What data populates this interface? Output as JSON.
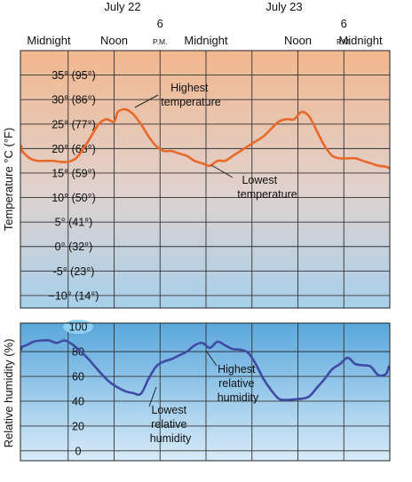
{
  "chart_data": [
    {
      "type": "line",
      "dates": [
        "July 22",
        "July 23"
      ],
      "time_labels": [
        {
          "label": "Midnight",
          "hour": 0
        },
        {
          "label": "Noon",
          "hour": 12
        },
        {
          "label": "6",
          "sub": "P.M.",
          "hour": 18
        },
        {
          "label": "Midnight",
          "hour": 24
        },
        {
          "label": "Noon",
          "hour": 36
        },
        {
          "label": "6",
          "sub": "P.M.",
          "hour": 42
        },
        {
          "label": "Midnight",
          "hour": 48
        }
      ],
      "xlim": [
        0,
        48
      ],
      "ylabel": "Temperature °C (°F)",
      "ylim": [
        -14,
        40
      ],
      "y_ticks": [
        {
          "value": 35,
          "label": "35° (95°)"
        },
        {
          "value": 30,
          "label": "30° (86°)"
        },
        {
          "value": 25,
          "label": "25° (77°)"
        },
        {
          "value": 20,
          "label": "20° (68°)"
        },
        {
          "value": 15,
          "label": "15° (59°)"
        },
        {
          "value": 10,
          "label": "10° (50°)"
        },
        {
          "value": 5,
          "label": "5° (41°)"
        },
        {
          "value": 0,
          "label": "0° (32°)"
        },
        {
          "value": -5,
          "label": "-5° (23°)"
        },
        {
          "value": -10,
          "label": "−10° (14°)"
        }
      ],
      "series": [
        {
          "color": "#e8692a",
          "points": [
            [
              -1.5,
              19.5
            ],
            [
              -1,
              20.5
            ],
            [
              0,
              19.5
            ],
            [
              1,
              18
            ],
            [
              2,
              17.5
            ],
            [
              3,
              17.5
            ],
            [
              4,
              17.5
            ],
            [
              5,
              17.3
            ],
            [
              6,
              17.3
            ],
            [
              7,
              18
            ],
            [
              8,
              20
            ],
            [
              9,
              22.5
            ],
            [
              10,
              25
            ],
            [
              11,
              26
            ],
            [
              12,
              25.5
            ],
            [
              12.5,
              27.5
            ],
            [
              13.5,
              28
            ],
            [
              14.5,
              27
            ],
            [
              15.5,
              25
            ],
            [
              16.5,
              22.5
            ],
            [
              17.5,
              20.5
            ],
            [
              18.5,
              19.5
            ],
            [
              19.5,
              19.5
            ],
            [
              20.5,
              19
            ],
            [
              21.5,
              18.5
            ],
            [
              22.5,
              17.5
            ],
            [
              23.5,
              17
            ],
            [
              24.5,
              16.5
            ],
            [
              25.5,
              17.5
            ],
            [
              26.5,
              17.5
            ],
            [
              27.5,
              18.5
            ],
            [
              28.5,
              19.5
            ],
            [
              29.5,
              20.5
            ],
            [
              30.5,
              21.5
            ],
            [
              31.5,
              22.5
            ],
            [
              32.5,
              24
            ],
            [
              33.5,
              25.5
            ],
            [
              34.5,
              26
            ],
            [
              35.5,
              26
            ],
            [
              36.5,
              27.5
            ],
            [
              37.5,
              26.5
            ],
            [
              38.5,
              23.5
            ],
            [
              39.5,
              20.5
            ],
            [
              40.5,
              18.5
            ],
            [
              41.5,
              18
            ],
            [
              42.5,
              18
            ],
            [
              43.5,
              18
            ],
            [
              44.5,
              17.5
            ],
            [
              45.5,
              17
            ],
            [
              46.5,
              16.5
            ],
            [
              47.5,
              16.3
            ],
            [
              48.5,
              16
            ]
          ]
        }
      ],
      "annotations": [
        {
          "lines": [
            "Highest",
            "temperature"
          ]
        },
        {
          "lines": [
            "Lowest",
            "temperature"
          ]
        }
      ],
      "background": {
        "top": "#f2b78e",
        "bottom": "#a7d0ea"
      },
      "grid": true
    },
    {
      "type": "line",
      "ylabel": "Relative humidity (%)",
      "xlim": [
        0,
        48
      ],
      "ylim": [
        -8,
        103
      ],
      "y_ticks": [
        {
          "value": 100,
          "label": "100"
        },
        {
          "value": 80,
          "label": "80"
        },
        {
          "value": 60,
          "label": "60"
        },
        {
          "value": 40,
          "label": "40"
        },
        {
          "value": 20,
          "label": "20"
        },
        {
          "value": 0,
          "label": "0"
        }
      ],
      "series": [
        {
          "color": "#3e4aa3",
          "points": [
            [
              -1.5,
              82
            ],
            [
              -0.5,
              82
            ],
            [
              0,
              84
            ],
            [
              0.5,
              85
            ],
            [
              1.5,
              88
            ],
            [
              2.5,
              89
            ],
            [
              3.5,
              89
            ],
            [
              4.5,
              87
            ],
            [
              5.5,
              89
            ],
            [
              6.5,
              86
            ],
            [
              7.5,
              81
            ],
            [
              8.5,
              75
            ],
            [
              9.5,
              68
            ],
            [
              10.5,
              61
            ],
            [
              11.5,
              55
            ],
            [
              12.5,
              51
            ],
            [
              13.5,
              48
            ],
            [
              14.5,
              46.5
            ],
            [
              15.5,
              46
            ],
            [
              16.5,
              58
            ],
            [
              17.5,
              68
            ],
            [
              18.5,
              72
            ],
            [
              19.5,
              74
            ],
            [
              20.5,
              77
            ],
            [
              21.5,
              80
            ],
            [
              22.5,
              85
            ],
            [
              23.5,
              87
            ],
            [
              24.5,
              83
            ],
            [
              25.5,
              88
            ],
            [
              26.5,
              85
            ],
            [
              27.5,
              82
            ],
            [
              28.5,
              81.5
            ],
            [
              29.5,
              79
            ],
            [
              30.5,
              70
            ],
            [
              31.5,
              58
            ],
            [
              32.5,
              49
            ],
            [
              33.5,
              42
            ],
            [
              34.5,
              41
            ],
            [
              35.5,
              41.5
            ],
            [
              36.5,
              42
            ],
            [
              37.5,
              44
            ],
            [
              38.5,
              51
            ],
            [
              39.5,
              58
            ],
            [
              40.5,
              66
            ],
            [
              41.5,
              70
            ],
            [
              42.5,
              75
            ],
            [
              43.5,
              70
            ],
            [
              44.5,
              69
            ],
            [
              45.5,
              68
            ],
            [
              46.5,
              61
            ],
            [
              47.5,
              62
            ],
            [
              48.5,
              68
            ]
          ]
        }
      ],
      "annotations": [
        {
          "lines": [
            "Highest",
            "relative",
            "humidity"
          ]
        },
        {
          "lines": [
            "Lowest",
            "relative",
            "humidity"
          ]
        }
      ],
      "background": {
        "top": "#5aa7dc",
        "bottom": "#d7ebf8"
      },
      "grid": true
    }
  ]
}
